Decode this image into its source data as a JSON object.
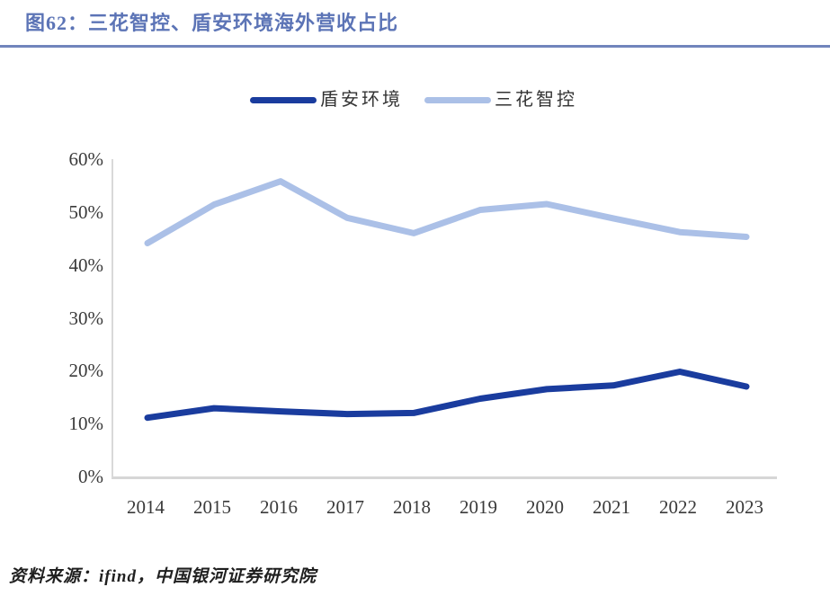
{
  "title": "图62：三花智控、盾安环境海外营收占比",
  "footer": "资料来源：ifind，中国银河证券研究院",
  "colors": {
    "title": "#5c74b6",
    "rule": "#7185bc",
    "dunan": "#1a3c9e",
    "sanhua": "#abc0e7",
    "axis_line": "#d9d9d9",
    "tick_text": "#3a3a3a"
  },
  "chart_data": {
    "type": "line",
    "categories": [
      "2014",
      "2015",
      "2016",
      "2017",
      "2018",
      "2019",
      "2020",
      "2021",
      "2022",
      "2023"
    ],
    "series": [
      {
        "name": "盾安环境",
        "color_key": "dunan",
        "values": [
          11.1,
          12.9,
          12.3,
          11.8,
          12.0,
          14.7,
          16.5,
          17.2,
          19.8,
          17.0
        ]
      },
      {
        "name": "三花智控",
        "color_key": "sanhua",
        "values": [
          44.1,
          51.4,
          55.8,
          48.9,
          46.0,
          50.4,
          51.5,
          48.8,
          46.2,
          45.3
        ]
      }
    ],
    "title": "图62：三花智控、盾安环境海外营收占比",
    "xlabel": "",
    "ylabel": "",
    "ylim": [
      0,
      60
    ],
    "ytick_step": 10,
    "ytick_labels": [
      "60%",
      "50%",
      "40%",
      "30%",
      "20%",
      "10%",
      "0%"
    ],
    "legend_position": "top-center",
    "grid": false
  }
}
